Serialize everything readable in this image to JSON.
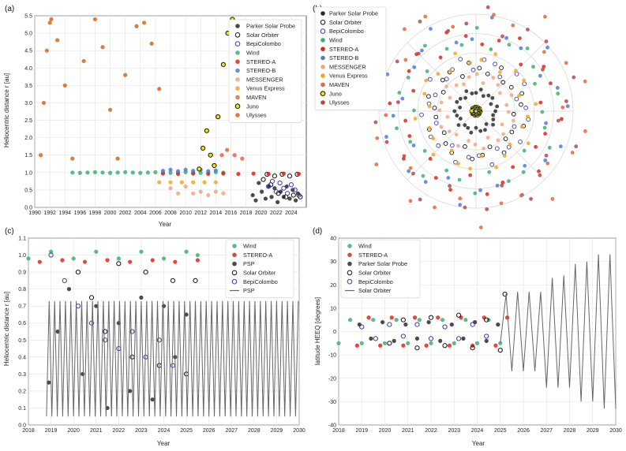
{
  "chart_data": [
    {
      "panel": "(a)",
      "type": "scatter",
      "xlabel": "Year",
      "ylabel": "Heliocentric distance r [au]",
      "xlim": [
        1990,
        2026
      ],
      "ylim": [
        0,
        5.5
      ],
      "xticks": [
        "1990",
        "1992",
        "1994",
        "1996",
        "1998",
        "2000",
        "2002",
        "2004",
        "2006",
        "2008",
        "2010",
        "2012",
        "2014",
        "2016",
        "2018",
        "2020",
        "2022",
        "2024"
      ],
      "yticks": [
        "0.0",
        "0.5",
        "1.0",
        "1.5",
        "2.0",
        "2.5",
        "3.0",
        "3.5",
        "4.0",
        "4.5",
        "5.0",
        "5.5"
      ],
      "grid": true,
      "legend_position": "top-right",
      "series": [
        {
          "name": "Parker Solar Probe",
          "color": "#2b2b2b",
          "marker": "filled",
          "x": [
            2018.9,
            2019.3,
            2019.7,
            2020.1,
            2020.6,
            2021.0,
            2021.4,
            2021.8,
            2022.2,
            2022.6,
            2023.0,
            2023.4,
            2023.8,
            2024.2,
            2024.6,
            2024.9
          ],
          "y": [
            0.35,
            0.2,
            0.7,
            0.45,
            0.25,
            0.6,
            0.3,
            0.55,
            0.15,
            0.45,
            0.3,
            0.6,
            0.25,
            0.5,
            0.2,
            0.4
          ]
        },
        {
          "name": "Solar Orbiter",
          "color": "#111111",
          "marker": "open",
          "x": [
            2020.3,
            2020.8,
            2021.3,
            2021.8,
            2022.3,
            2022.8,
            2023.3,
            2023.8,
            2024.3,
            2024.8,
            2025.2
          ],
          "y": [
            0.8,
            0.95,
            0.65,
            0.9,
            0.4,
            0.95,
            0.3,
            0.9,
            0.35,
            0.95,
            0.3
          ]
        },
        {
          "name": "BepiColombo",
          "color": "#3b3ba8",
          "marker": "open",
          "x": [
            2021.0,
            2021.5,
            2022.0,
            2022.5,
            2023.0,
            2023.5,
            2024.0,
            2024.5,
            2025.0
          ],
          "y": [
            0.6,
            0.75,
            0.45,
            0.7,
            0.55,
            0.4,
            0.65,
            0.5,
            0.35
          ]
        },
        {
          "name": "Wind",
          "color": "#3cb371",
          "marker": "filled",
          "x": [
            1995,
            1996,
            1997,
            1998,
            1999,
            2000,
            2001,
            2002,
            2003,
            2004,
            2005,
            2006,
            2007,
            2008,
            2009,
            2010,
            2011,
            2012,
            2013,
            2014,
            2015
          ],
          "y": [
            1.0,
            0.99,
            1.0,
            1.01,
            1.0,
            0.99,
            1.0,
            1.01,
            1.0,
            0.99,
            1.0,
            1.01,
            1.0,
            0.99,
            1.0,
            1.01,
            1.0,
            0.99,
            1.0,
            1.01,
            1.0
          ]
        },
        {
          "name": "STEREO-A",
          "color": "#e0261c",
          "marker": "filled",
          "x": [
            2007,
            2009,
            2011,
            2013,
            2015,
            2017,
            2019,
            2021,
            2023,
            2025
          ],
          "y": [
            0.97,
            0.96,
            0.97,
            0.96,
            0.97,
            0.96,
            0.97,
            0.96,
            0.97,
            0.96
          ]
        },
        {
          "name": "STEREO-B",
          "color": "#4f7be0",
          "marker": "filled",
          "x": [
            2007,
            2008,
            2009,
            2010,
            2011,
            2012,
            2013,
            2014
          ],
          "y": [
            1.05,
            1.08,
            1.04,
            1.08,
            1.05,
            1.08,
            1.04,
            1.06
          ]
        },
        {
          "name": "MESSENGER",
          "color": "#f4a582",
          "marker": "filled",
          "x": [
            2008,
            2009,
            2010,
            2011,
            2012,
            2013,
            2014,
            2015
          ],
          "y": [
            0.55,
            0.4,
            0.6,
            0.4,
            0.45,
            0.35,
            0.45,
            0.4
          ]
        },
        {
          "name": "Venus Express",
          "color": "#f5a623",
          "marker": "filled",
          "x": [
            2006.5,
            2008,
            2009.5,
            2011,
            2012.5,
            2014
          ],
          "y": [
            0.72,
            0.72,
            0.72,
            0.72,
            0.72,
            0.72
          ]
        },
        {
          "name": "MAVEN",
          "color": "#e8663d",
          "marker": "filled",
          "x": [
            2014.8,
            2015.5,
            2016.5,
            2017.5
          ],
          "y": [
            1.5,
            1.65,
            1.5,
            1.4
          ]
        },
        {
          "name": "Juno",
          "color": "#f2e600",
          "marker": "open-yellow",
          "x": [
            2011.8,
            2012.3,
            2012.8,
            2013.3,
            2013.8,
            2014.3,
            2015.0,
            2015.6,
            2016.2
          ],
          "y": [
            1.1,
            1.7,
            2.2,
            1.5,
            1.2,
            2.6,
            4.1,
            5.0,
            5.4
          ]
        },
        {
          "name": "Ulysses",
          "color": "#d2691e",
          "marker": "filled",
          "x": [
            1990.8,
            1991.2,
            1991.6,
            1992.0,
            1992.2,
            1993.0,
            1994.0,
            1995.0,
            1996.5,
            1998.0,
            1999.0,
            2000.0,
            2001.0,
            2002.0,
            2003.5,
            2004.5,
            2005.5,
            2006.5
          ],
          "y": [
            1.5,
            3.0,
            4.5,
            5.3,
            5.4,
            4.8,
            3.5,
            1.4,
            4.2,
            5.4,
            4.6,
            2.8,
            1.4,
            3.8,
            5.2,
            5.3,
            4.7,
            3.4
          ]
        }
      ]
    },
    {
      "panel": "(b)",
      "type": "scatter",
      "projection": "polar",
      "rings": 5,
      "legend_position": "top-left",
      "series": [
        {
          "name": "Parker Solar Probe",
          "color": "#2b2b2b"
        },
        {
          "name": "Solar Orbiter",
          "color": "#111111"
        },
        {
          "name": "BepiColombo",
          "color": "#3b3ba8"
        },
        {
          "name": "Wind",
          "color": "#3cb371"
        },
        {
          "name": "STEREO-A",
          "color": "#e0261c"
        },
        {
          "name": "STEREO-B",
          "color": "#4f7be0"
        },
        {
          "name": "MESSENGER",
          "color": "#f4a582"
        },
        {
          "name": "Venus Express",
          "color": "#f5a623"
        },
        {
          "name": "MAVEN",
          "color": "#e8663d"
        },
        {
          "name": "Juno",
          "color": "#f2e600"
        },
        {
          "name": "Ulysses",
          "color": "#b04a4a"
        }
      ]
    },
    {
      "panel": "(c)",
      "type": "scatter",
      "xlabel": "Year",
      "ylabel": "Heliocentric distance r [au]",
      "xlim": [
        2018,
        2030
      ],
      "ylim": [
        0,
        1.1
      ],
      "xticks": [
        "2018",
        "2019",
        "2020",
        "2021",
        "2022",
        "2023",
        "2024",
        "2025",
        "2026",
        "2027",
        "2028",
        "2029",
        "2030"
      ],
      "yticks": [
        "0.0",
        "0.1",
        "0.2",
        "0.3",
        "0.4",
        "0.5",
        "0.6",
        "0.7",
        "0.8",
        "0.9",
        "1.0",
        "1.1"
      ],
      "grid": true,
      "legend_position": "top-right",
      "series": [
        {
          "name": "Wind",
          "color": "#3cb371",
          "marker": "filled",
          "x": [
            2018.0,
            2019.0,
            2020.0,
            2021.0,
            2022.0,
            2023.0,
            2024.0,
            2025.0,
            2025.5
          ],
          "y": [
            0.98,
            1.02,
            0.98,
            1.02,
            0.98,
            1.02,
            0.98,
            1.02,
            1.0
          ]
        },
        {
          "name": "STEREO-A",
          "color": "#e0261c",
          "marker": "filled",
          "x": [
            2018.5,
            2019.5,
            2020.5,
            2021.5,
            2022.5,
            2023.5,
            2024.5,
            2025.5
          ],
          "y": [
            0.96,
            0.97,
            0.96,
            0.97,
            0.96,
            0.97,
            0.96,
            0.97
          ]
        },
        {
          "name": "PSP",
          "color": "#2b2b2b",
          "marker": "filled",
          "x": [
            2018.9,
            2019.3,
            2019.8,
            2020.4,
            2021.0,
            2021.5,
            2022.0,
            2022.5,
            2023.0,
            2023.5,
            2024.0,
            2024.5,
            2025.0
          ],
          "y": [
            0.25,
            0.55,
            0.8,
            0.3,
            0.7,
            0.1,
            0.6,
            0.2,
            0.75,
            0.15,
            0.7,
            0.4,
            0.65
          ]
        },
        {
          "name": "Solar Orbiter",
          "color": "#111111",
          "marker": "open",
          "x": [
            2020.2,
            2020.8,
            2021.4,
            2022.0,
            2022.6,
            2023.2,
            2023.8,
            2024.4,
            2025.0,
            2025.4
          ],
          "y": [
            0.9,
            0.75,
            0.55,
            0.95,
            0.4,
            0.9,
            0.35,
            0.85,
            0.3,
            0.85
          ]
        },
        {
          "name": "BepiColombo",
          "color": "#3b3ba8",
          "marker": "open",
          "x": [
            2019.0,
            2019.6,
            2020.2,
            2020.8,
            2021.4,
            2022.0,
            2022.6,
            2023.2,
            2023.8,
            2024.4
          ],
          "y": [
            1.0,
            0.85,
            0.7,
            0.6,
            0.5,
            0.45,
            0.55,
            0.4,
            0.5,
            0.35
          ]
        },
        {
          "name": "PSP",
          "color": "#666666",
          "marker": "line",
          "period": 0.24,
          "x_start": 2018.8,
          "x_end": 2030,
          "perihelion": 0.05,
          "aphelion": 0.73
        }
      ]
    },
    {
      "panel": "(d)",
      "type": "scatter",
      "xlabel": "Year",
      "ylabel": "latitude HEEQ [degrees]",
      "xlim": [
        2018,
        2030
      ],
      "ylim": [
        -40,
        40
      ],
      "xticks": [
        "2018",
        "2019",
        "2020",
        "2021",
        "2022",
        "2023",
        "2024",
        "2025",
        "2026",
        "2027",
        "2028",
        "2029",
        "2030"
      ],
      "yticks": [
        "-40",
        "-30",
        "-20",
        "-10",
        "0",
        "10",
        "20",
        "30",
        "40"
      ],
      "grid": true,
      "legend_position": "top-left",
      "series": [
        {
          "name": "Wind",
          "color": "#3cb371",
          "marker": "filled",
          "x": [
            2018.0,
            2018.5,
            2019.0,
            2019.5,
            2020.0,
            2020.5,
            2021.0,
            2021.5,
            2022.0,
            2022.5,
            2023.0,
            2023.5,
            2024.0,
            2024.5,
            2025.0
          ],
          "y": [
            -5,
            5,
            -5,
            5,
            -5,
            5,
            -5,
            5,
            -5,
            5,
            -5,
            5,
            -5,
            5,
            -5
          ]
        },
        {
          "name": "STEREO-A",
          "color": "#e0261c",
          "marker": "filled",
          "x": [
            2018.8,
            2019.3,
            2019.8,
            2020.3,
            2020.8,
            2021.3,
            2021.8,
            2022.3,
            2022.8,
            2023.3,
            2023.8,
            2024.3,
            2024.8,
            2025.3
          ],
          "y": [
            -6,
            6,
            -6,
            6,
            -6,
            6,
            -6,
            6,
            -6,
            6,
            -6,
            6,
            -6,
            6
          ]
        },
        {
          "name": "Parker Solar Probe",
          "color": "#2b2b2b",
          "marker": "filled",
          "x": [
            2018.9,
            2019.4,
            2019.9,
            2020.4,
            2020.9,
            2021.4,
            2021.9,
            2022.4,
            2022.9,
            2023.4,
            2023.9,
            2024.4,
            2024.9
          ],
          "y": [
            3,
            -3,
            4,
            -4,
            3,
            -3,
            4,
            -4,
            3,
            -3,
            4,
            -4,
            3
          ]
        },
        {
          "name": "Solar Orbiter",
          "color": "#111111",
          "marker": "open",
          "x": [
            2020.2,
            2020.8,
            2021.4,
            2022.0,
            2022.6,
            2023.2,
            2023.8,
            2024.4,
            2025.0,
            2025.2
          ],
          "y": [
            -5,
            5,
            -7,
            6,
            -6,
            7,
            -7,
            5,
            -8,
            16
          ]
        },
        {
          "name": "BepiColombo",
          "color": "#3b3ba8",
          "marker": "open",
          "x": [
            2019.0,
            2019.6,
            2020.2,
            2020.8,
            2021.4,
            2022.0,
            2022.6,
            2023.2,
            2023.8,
            2024.4
          ],
          "y": [
            2,
            -3,
            3,
            -2,
            3,
            -3,
            2,
            -3,
            3,
            -2
          ]
        },
        {
          "name": "Solar Orbiter",
          "color": "#666666",
          "marker": "line",
          "x": [
            2025.0,
            2025.25,
            2025.5,
            2025.75,
            2026.0,
            2026.25,
            2026.5,
            2026.75,
            2027.0,
            2027.25,
            2027.5,
            2027.75,
            2028.0,
            2028.25,
            2028.5,
            2028.75,
            2029.0,
            2029.25,
            2029.5,
            2029.75,
            2030.0
          ],
          "y": [
            -5,
            16,
            -17,
            17,
            -17,
            17,
            -17,
            17,
            -24,
            23,
            -24,
            24,
            -24,
            29,
            -30,
            30,
            -30,
            33,
            -33,
            33,
            -33
          ]
        }
      ]
    }
  ]
}
